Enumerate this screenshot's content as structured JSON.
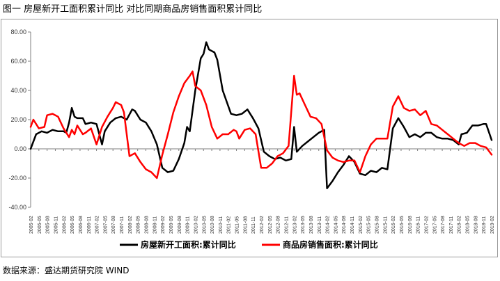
{
  "header": {
    "title": "图一  房屋新开工面积累计同比  对比同期商品房销售面积累计同比"
  },
  "footer": {
    "source": "数据来源：盛达期货研究院  WIND"
  },
  "chart_data": {
    "type": "line",
    "title": "",
    "xlabel": "",
    "ylabel": "",
    "ylim": [
      -40,
      80
    ],
    "yticks": [
      -40,
      -20,
      0,
      20,
      40,
      60,
      80
    ],
    "ytick_labels": [
      "-40.00",
      "-20.00",
      "0.00",
      "20.00",
      "40.00",
      "60.00",
      "80.00"
    ],
    "x_start": "2005-02",
    "x_end": "2019-02",
    "xtick_labels": [
      "2005-02",
      "2005-05",
      "2005-08",
      "2005-11",
      "2006-02",
      "2006-05",
      "2006-08",
      "2006-11",
      "2007-02",
      "2007-05",
      "2007-08",
      "2007-11",
      "2008-02",
      "2008-05",
      "2008-08",
      "2008-11",
      "2009-02",
      "2009-05",
      "2009-08",
      "2009-11",
      "2010-02",
      "2010-05",
      "2010-08",
      "2010-11",
      "2011-02",
      "2011-05",
      "2011-08",
      "2011-11",
      "2012-02",
      "2012-05",
      "2012-08",
      "2012-11",
      "2013-02",
      "2013-05",
      "2013-08",
      "2013-11",
      "2014-02",
      "2014-05",
      "2014-08",
      "2014-11",
      "2015-02",
      "2015-05",
      "2015-08",
      "2015-11",
      "2016-02",
      "2016-05",
      "2016-08",
      "2016-11",
      "2017-02",
      "2017-05",
      "2017-08",
      "2017-11",
      "2018-02",
      "2018-05",
      "2018-08",
      "2018-11",
      "2019-02"
    ],
    "legend_position": "bottom",
    "grid": false,
    "series": [
      {
        "name": "房屋新开工面积:累计同比",
        "color": "#000000",
        "points": [
          [
            "2005-02",
            0
          ],
          [
            "2005-04",
            10
          ],
          [
            "2005-06",
            12
          ],
          [
            "2005-08",
            11
          ],
          [
            "2005-10",
            13
          ],
          [
            "2005-12",
            12
          ],
          [
            "2006-02",
            12
          ],
          [
            "2006-03",
            11
          ],
          [
            "2006-04",
            18
          ],
          [
            "2006-05",
            28
          ],
          [
            "2006-06",
            22
          ],
          [
            "2006-07",
            21
          ],
          [
            "2006-09",
            21
          ],
          [
            "2006-10",
            17
          ],
          [
            "2006-12",
            18
          ],
          [
            "2007-02",
            17
          ],
          [
            "2007-04",
            3
          ],
          [
            "2007-05",
            12
          ],
          [
            "2007-07",
            18
          ],
          [
            "2007-09",
            21
          ],
          [
            "2007-11",
            22
          ],
          [
            "2008-01",
            20
          ],
          [
            "2008-03",
            27
          ],
          [
            "2008-04",
            26
          ],
          [
            "2008-06",
            20
          ],
          [
            "2008-08",
            18
          ],
          [
            "2008-10",
            12
          ],
          [
            "2008-12",
            3
          ],
          [
            "2009-02",
            -13
          ],
          [
            "2009-04",
            -16
          ],
          [
            "2009-06",
            -15
          ],
          [
            "2009-08",
            -7
          ],
          [
            "2009-10",
            4
          ],
          [
            "2009-11",
            15
          ],
          [
            "2009-12",
            12
          ],
          [
            "2010-02",
            40
          ],
          [
            "2010-04",
            62
          ],
          [
            "2010-05",
            65
          ],
          [
            "2010-06",
            73
          ],
          [
            "2010-07",
            68
          ],
          [
            "2010-09",
            66
          ],
          [
            "2010-10",
            61
          ],
          [
            "2010-12",
            40
          ],
          [
            "2011-03",
            24
          ],
          [
            "2011-05",
            23
          ],
          [
            "2011-07",
            24
          ],
          [
            "2011-09",
            27
          ],
          [
            "2011-11",
            21
          ],
          [
            "2012-01",
            14
          ],
          [
            "2012-03",
            -2
          ],
          [
            "2012-05",
            -5
          ],
          [
            "2012-07",
            -7
          ],
          [
            "2012-09",
            -6
          ],
          [
            "2012-11",
            -8
          ],
          [
            "2013-01",
            -7
          ],
          [
            "2013-02",
            15
          ],
          [
            "2013-03",
            -2
          ],
          [
            "2013-05",
            2
          ],
          [
            "2013-07",
            5
          ],
          [
            "2013-09",
            8
          ],
          [
            "2013-11",
            11
          ],
          [
            "2014-01",
            13
          ],
          [
            "2014-02",
            -27
          ],
          [
            "2014-04",
            -22
          ],
          [
            "2014-06",
            -16
          ],
          [
            "2014-08",
            -11
          ],
          [
            "2014-10",
            -5
          ],
          [
            "2014-12",
            -9
          ],
          [
            "2015-02",
            -17
          ],
          [
            "2015-04",
            -18
          ],
          [
            "2015-06",
            -15
          ],
          [
            "2015-08",
            -16
          ],
          [
            "2015-10",
            -13
          ],
          [
            "2015-12",
            -14
          ],
          [
            "2016-02",
            14
          ],
          [
            "2016-04",
            21
          ],
          [
            "2016-06",
            15
          ],
          [
            "2016-08",
            8
          ],
          [
            "2016-10",
            10
          ],
          [
            "2016-12",
            8
          ],
          [
            "2017-02",
            11
          ],
          [
            "2017-04",
            11
          ],
          [
            "2017-06",
            8
          ],
          [
            "2017-08",
            7
          ],
          [
            "2017-10",
            7
          ],
          [
            "2017-12",
            6
          ],
          [
            "2018-02",
            3
          ],
          [
            "2018-03",
            10
          ],
          [
            "2018-05",
            11
          ],
          [
            "2018-07",
            16
          ],
          [
            "2018-09",
            16
          ],
          [
            "2018-11",
            17
          ],
          [
            "2018-12",
            17
          ],
          [
            "2019-02",
            6
          ]
        ]
      },
      {
        "name": "商品房销售面积:累计同比",
        "color": "#ff0000",
        "points": [
          [
            "2005-02",
            15
          ],
          [
            "2005-03",
            20
          ],
          [
            "2005-05",
            14
          ],
          [
            "2005-07",
            15
          ],
          [
            "2005-08",
            23
          ],
          [
            "2005-10",
            24
          ],
          [
            "2005-12",
            22
          ],
          [
            "2006-02",
            14
          ],
          [
            "2006-04",
            8
          ],
          [
            "2006-05",
            13
          ],
          [
            "2006-06",
            10
          ],
          [
            "2006-07",
            16
          ],
          [
            "2006-09",
            10
          ],
          [
            "2006-10",
            11
          ],
          [
            "2006-12",
            14
          ],
          [
            "2007-02",
            3
          ],
          [
            "2007-04",
            15
          ],
          [
            "2007-06",
            22
          ],
          [
            "2007-08",
            28
          ],
          [
            "2007-09",
            32
          ],
          [
            "2007-11",
            30
          ],
          [
            "2007-12",
            25
          ],
          [
            "2008-02",
            -5
          ],
          [
            "2008-04",
            -3
          ],
          [
            "2008-06",
            -9
          ],
          [
            "2008-08",
            -14
          ],
          [
            "2008-10",
            -16
          ],
          [
            "2008-12",
            -20
          ],
          [
            "2009-02",
            -4
          ],
          [
            "2009-04",
            10
          ],
          [
            "2009-06",
            25
          ],
          [
            "2009-08",
            36
          ],
          [
            "2009-10",
            45
          ],
          [
            "2009-12",
            50
          ],
          [
            "2010-01",
            53
          ],
          [
            "2010-02",
            43
          ],
          [
            "2010-04",
            40
          ],
          [
            "2010-06",
            30
          ],
          [
            "2010-08",
            15
          ],
          [
            "2010-10",
            7
          ],
          [
            "2010-12",
            10
          ],
          [
            "2011-02",
            10
          ],
          [
            "2011-04",
            13
          ],
          [
            "2011-05",
            12
          ],
          [
            "2011-06",
            7
          ],
          [
            "2011-08",
            13
          ],
          [
            "2011-10",
            14
          ],
          [
            "2011-12",
            10
          ],
          [
            "2012-02",
            -13
          ],
          [
            "2012-04",
            -13
          ],
          [
            "2012-06",
            -10
          ],
          [
            "2012-08",
            -5
          ],
          [
            "2012-10",
            -3
          ],
          [
            "2012-12",
            2
          ],
          [
            "2013-02",
            50
          ],
          [
            "2013-03",
            37
          ],
          [
            "2013-04",
            38
          ],
          [
            "2013-06",
            30
          ],
          [
            "2013-08",
            22
          ],
          [
            "2013-10",
            21
          ],
          [
            "2013-12",
            17
          ],
          [
            "2014-02",
            -1
          ],
          [
            "2014-04",
            -6
          ],
          [
            "2014-06",
            -8
          ],
          [
            "2014-08",
            -9
          ],
          [
            "2014-10",
            -8
          ],
          [
            "2014-12",
            -8
          ],
          [
            "2015-02",
            -16
          ],
          [
            "2015-04",
            -5
          ],
          [
            "2015-06",
            3
          ],
          [
            "2015-08",
            7
          ],
          [
            "2015-10",
            7
          ],
          [
            "2015-12",
            7
          ],
          [
            "2016-02",
            29
          ],
          [
            "2016-04",
            36
          ],
          [
            "2016-06",
            28
          ],
          [
            "2016-08",
            26
          ],
          [
            "2016-10",
            27
          ],
          [
            "2016-12",
            23
          ],
          [
            "2017-02",
            26
          ],
          [
            "2017-04",
            17
          ],
          [
            "2017-06",
            16
          ],
          [
            "2017-08",
            13
          ],
          [
            "2017-10",
            10
          ],
          [
            "2017-12",
            7
          ],
          [
            "2018-02",
            4
          ],
          [
            "2018-04",
            2
          ],
          [
            "2018-06",
            4
          ],
          [
            "2018-08",
            4
          ],
          [
            "2018-10",
            2
          ],
          [
            "2018-12",
            1
          ],
          [
            "2019-02",
            -4
          ]
        ]
      }
    ]
  }
}
